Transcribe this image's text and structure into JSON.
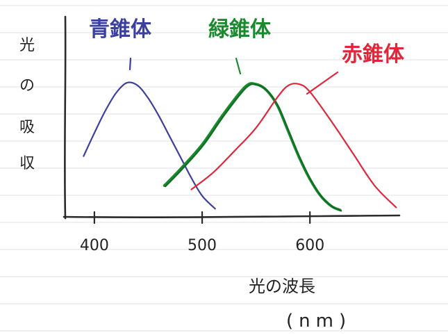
{
  "chart_data": {
    "type": "line",
    "title": "",
    "xlabel": "光の波長",
    "xlabel_unit": "(nm)",
    "ylabel": [
      "光",
      "の",
      "吸",
      "収"
    ],
    "xlim": [
      373,
      683
    ],
    "ylim": [
      0,
      1.05
    ],
    "xticks": [
      400,
      500,
      600
    ],
    "xtick_labels": [
      "400",
      "500",
      "600"
    ],
    "grid": false,
    "series": [
      {
        "name": "青錐体",
        "color": "#3b3f9e",
        "x": [
          390,
          400,
          410,
          420,
          430,
          440,
          450,
          460,
          470,
          480,
          490,
          500,
          512
        ],
        "y": [
          0.43,
          0.61,
          0.78,
          0.92,
          1.0,
          0.98,
          0.88,
          0.74,
          0.58,
          0.42,
          0.26,
          0.12,
          0.02
        ]
      },
      {
        "name": "緑錐体",
        "color": "#1a8a2e",
        "x": [
          465,
          480,
          500,
          520,
          540,
          550,
          560,
          570,
          580,
          590,
          600,
          610,
          620,
          628
        ],
        "y": [
          0.2,
          0.33,
          0.52,
          0.76,
          0.97,
          0.99,
          0.94,
          0.82,
          0.62,
          0.42,
          0.25,
          0.12,
          0.04,
          0.01
        ]
      },
      {
        "name": "赤錐体",
        "color": "#e0263a",
        "x": [
          490,
          510,
          530,
          550,
          570,
          580,
          590,
          600,
          620,
          640,
          660,
          680
        ],
        "y": [
          0.17,
          0.3,
          0.47,
          0.65,
          0.89,
          0.98,
          0.99,
          0.93,
          0.7,
          0.45,
          0.2,
          0.03
        ]
      }
    ]
  }
}
